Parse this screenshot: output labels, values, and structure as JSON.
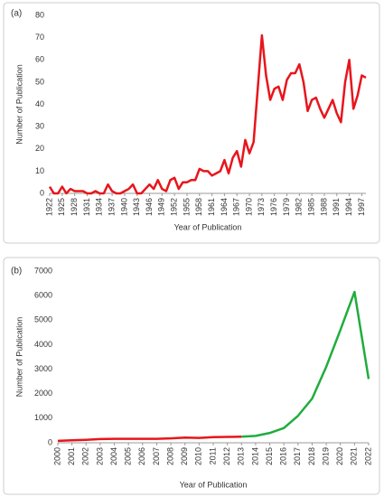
{
  "chart_data": [
    {
      "type": "line",
      "annotation": "(a)",
      "x_label": "Year of Publication",
      "y_label": "Number of Publication",
      "x": [
        1922,
        1923,
        1924,
        1925,
        1926,
        1927,
        1928,
        1929,
        1930,
        1931,
        1932,
        1933,
        1934,
        1935,
        1936,
        1937,
        1938,
        1939,
        1940,
        1941,
        1942,
        1943,
        1944,
        1945,
        1946,
        1947,
        1948,
        1949,
        1950,
        1951,
        1952,
        1953,
        1954,
        1955,
        1956,
        1957,
        1958,
        1959,
        1960,
        1961,
        1962,
        1963,
        1964,
        1965,
        1966,
        1967,
        1968,
        1969,
        1970,
        1971,
        1972,
        1973,
        1974,
        1975,
        1976,
        1977,
        1978,
        1979,
        1980,
        1981,
        1982,
        1983,
        1984,
        1985,
        1986,
        1987,
        1988,
        1989,
        1990,
        1991,
        1992,
        1993,
        1994,
        1995,
        1996,
        1997,
        1998
      ],
      "series": [
        {
          "color": "#e8151b",
          "values": [
            3,
            0,
            0,
            3,
            0,
            2,
            1,
            1,
            1,
            0,
            0,
            1,
            0,
            0,
            4,
            1,
            0,
            0,
            1,
            2,
            4,
            0,
            0,
            2,
            4,
            2,
            6,
            2,
            1,
            6,
            7,
            2,
            5,
            5,
            6,
            6,
            11,
            10,
            10,
            8,
            9,
            10,
            15,
            9,
            16,
            19,
            12,
            24,
            18,
            23,
            47,
            71,
            53,
            42,
            47,
            48,
            42,
            51,
            54,
            54,
            58,
            50,
            37,
            42,
            43,
            38,
            34,
            38,
            42,
            36,
            32,
            50,
            60,
            38,
            44,
            53,
            52
          ]
        }
      ],
      "xlim": [
        1922,
        1998
      ],
      "xticks": [
        1922,
        1925,
        1928,
        1931,
        1934,
        1937,
        1940,
        1943,
        1946,
        1949,
        1952,
        1955,
        1958,
        1961,
        1964,
        1967,
        1970,
        1973,
        1976,
        1979,
        1982,
        1985,
        1988,
        1991,
        1994,
        1997
      ],
      "ylim": [
        0,
        80
      ],
      "yticks": [
        0,
        10,
        20,
        30,
        40,
        50,
        60,
        70,
        80
      ]
    },
    {
      "type": "line",
      "annotation": "(b)",
      "x_label": "Year of Publication",
      "y_label": "Number of Publication",
      "x": [
        2000,
        2001,
        2002,
        2003,
        2004,
        2005,
        2006,
        2007,
        2008,
        2009,
        2010,
        2011,
        2012,
        2013,
        2014,
        2015,
        2016,
        2017,
        2018,
        2019,
        2020,
        2021,
        2022
      ],
      "series": [
        {
          "color": "#e8151b",
          "values": [
            80,
            100,
            120,
            150,
            160,
            160,
            160,
            160,
            180,
            210,
            200,
            230,
            240,
            250,
            null,
            null,
            null,
            null,
            null,
            null,
            null,
            null,
            null
          ]
        },
        {
          "color": "#1fad3d",
          "values": [
            null,
            null,
            null,
            null,
            null,
            null,
            null,
            null,
            null,
            null,
            null,
            null,
            null,
            250,
            280,
            400,
            600,
            1100,
            1800,
            3100,
            4600,
            6150,
            2600
          ]
        }
      ],
      "xlim": [
        2000,
        2022
      ],
      "xticks": [
        2000,
        2001,
        2002,
        2003,
        2004,
        2005,
        2006,
        2007,
        2008,
        2009,
        2010,
        2011,
        2012,
        2013,
        2014,
        2015,
        2016,
        2017,
        2018,
        2019,
        2020,
        2021,
        2022
      ],
      "ylim": [
        0,
        7000
      ],
      "yticks": [
        0,
        1000,
        2000,
        3000,
        4000,
        5000,
        6000,
        7000
      ]
    }
  ]
}
